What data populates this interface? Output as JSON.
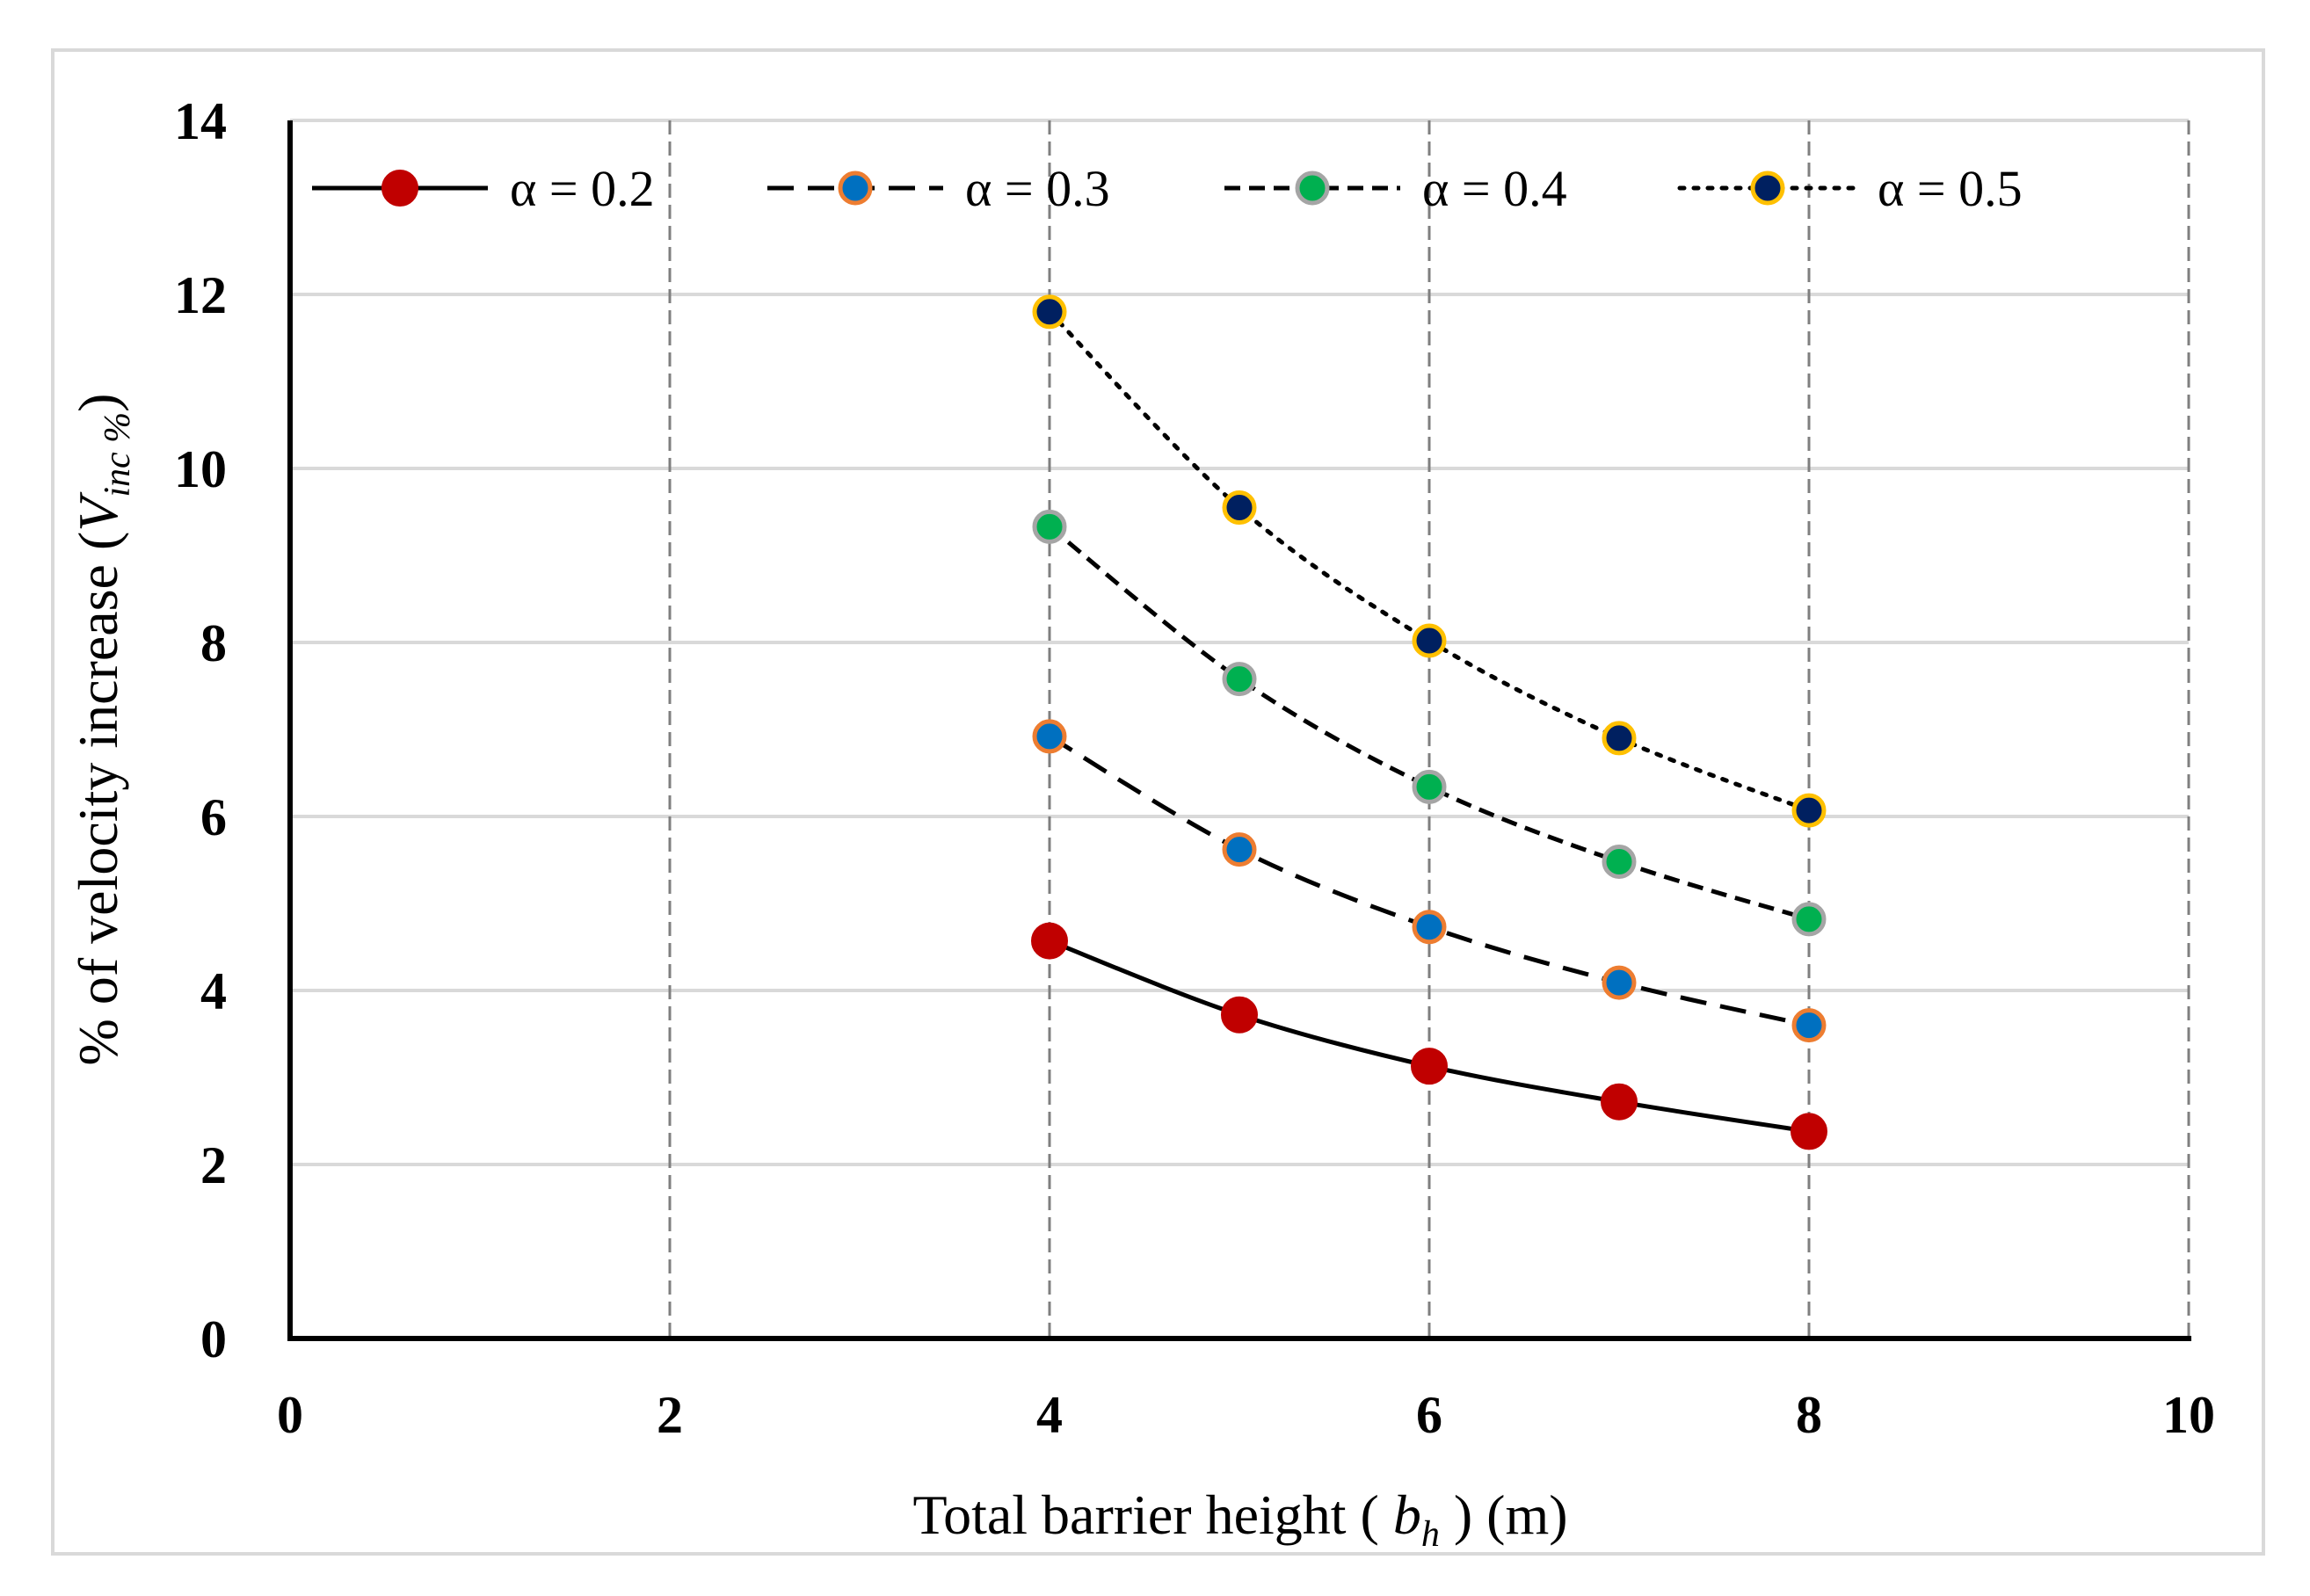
{
  "chart_data": {
    "type": "line",
    "title": "",
    "xlabel": {
      "prefix": "Total barrier height ( ",
      "symbol": "b",
      "subscript": "h",
      "suffix": " ) (m)"
    },
    "ylabel": {
      "prefix": "% of velocity increase (",
      "symbol": "V",
      "subscript": "inc %",
      "suffix": ")"
    },
    "xlim": [
      0,
      10
    ],
    "ylim": [
      0,
      14
    ],
    "xticks": [
      "0",
      "2",
      "4",
      "6",
      "8",
      "10"
    ],
    "yticks": [
      "0",
      "2",
      "4",
      "6",
      "8",
      "10",
      "12",
      "14"
    ],
    "grid": {
      "horizontal": "solid",
      "vertical": "dashed"
    },
    "legend_position": "top",
    "x": [
      4,
      5,
      6,
      7,
      8
    ],
    "series": [
      {
        "name": "α = 0.2",
        "values": [
          4.57,
          3.72,
          3.13,
          2.72,
          2.38
        ],
        "line": "solid",
        "fill": "#c00000",
        "edge": "#c00000"
      },
      {
        "name": "α = 0.3",
        "values": [
          6.92,
          5.62,
          4.73,
          4.09,
          3.6
        ],
        "line": "long-dash",
        "fill": "#0070c0",
        "edge": "#ed7d31"
      },
      {
        "name": "α = 0.4",
        "values": [
          9.33,
          7.58,
          6.34,
          5.48,
          4.82
        ],
        "line": "dash",
        "fill": "#00b050",
        "edge": "#a5a5a5"
      },
      {
        "name": "α = 0.5",
        "values": [
          11.8,
          9.55,
          8.02,
          6.9,
          6.07
        ],
        "line": "dotted",
        "fill": "#002060",
        "edge": "#ffc000"
      }
    ]
  }
}
